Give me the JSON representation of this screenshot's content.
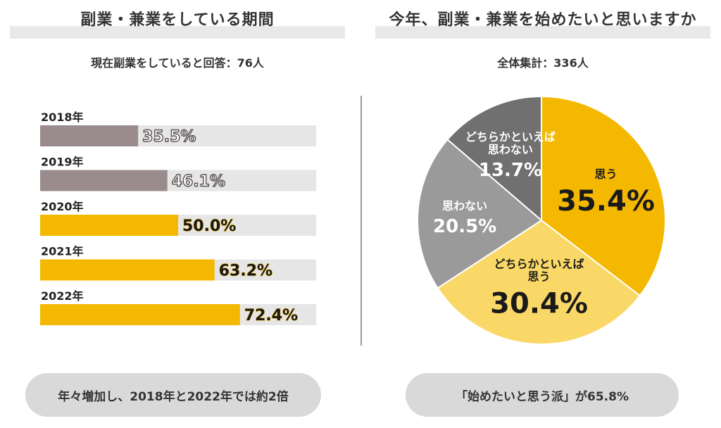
{
  "left_panel": {
    "title": "副業・兼業をしている期間",
    "subtitle": "現在副業をしていると回答：76人",
    "footer": "年々増加し、2018年と2022年では約2倍"
  },
  "right_panel": {
    "title": "今年、副業・兼業を始めたいと思いますか",
    "subtitle": "全体集計：336人",
    "footer": "「始めたいと思う派」が65.8%"
  },
  "colors": {
    "gold": "#f4b800",
    "light_gold": "#fad868",
    "mauve": "#9a8c8c",
    "track": "#e6e6e6",
    "mid_gray": "#9a9a9a",
    "dark_gray": "#707070"
  },
  "chart_data": [
    {
      "type": "bar",
      "orientation": "horizontal",
      "categories": [
        "2018年",
        "2019年",
        "2020年",
        "2021年",
        "2022年"
      ],
      "values": [
        35.5,
        46.1,
        50.0,
        63.2,
        72.4
      ],
      "value_labels": [
        "35.5%",
        "46.1%",
        "50.0%",
        "63.2%",
        "72.4%"
      ],
      "bar_colors": [
        "#9a8c8c",
        "#9a8c8c",
        "#f4b800",
        "#f4b800",
        "#f4b800"
      ],
      "label_styles": [
        "outline",
        "outline",
        "dark",
        "dark",
        "dark"
      ],
      "xlim": [
        0,
        100
      ]
    },
    {
      "type": "pie",
      "start": "top",
      "direction": "clockwise",
      "slices": [
        {
          "lines": [
            "思う"
          ],
          "value": 35.4,
          "value_label": "35.4%",
          "color": "#f4b800",
          "text_color": "#1a1a1a"
        },
        {
          "lines": [
            "どちらかといえば",
            "思う"
          ],
          "value": 30.4,
          "value_label": "30.4%",
          "color": "#fad868",
          "text_color": "#1a1a1a"
        },
        {
          "lines": [
            "思わない"
          ],
          "value": 20.5,
          "value_label": "20.5%",
          "color": "#9a9a9a",
          "text_color": "#ffffff"
        },
        {
          "lines": [
            "どちらかといえば",
            "思わない"
          ],
          "value": 13.7,
          "value_label": "13.7%",
          "color": "#707070",
          "text_color": "#ffffff"
        }
      ]
    }
  ]
}
